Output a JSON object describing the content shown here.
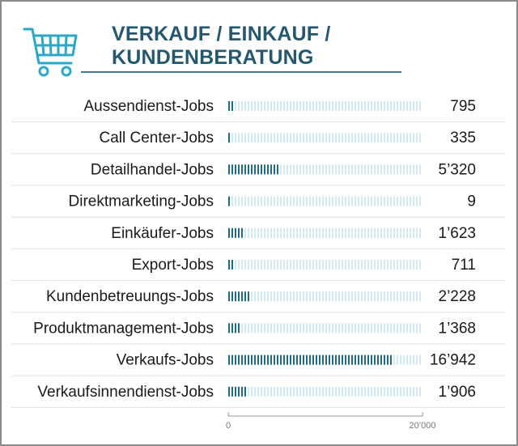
{
  "header": {
    "title_line1": "VERKAUF / EINKAUF /",
    "title_line2": "KUNDENBERATUNG",
    "icon": "shopping-cart-icon"
  },
  "colors": {
    "title": "#24586e",
    "bar_fill": "#1f6b82",
    "bar_track": "#d3e9f0",
    "row_divider": "#e2e2e2",
    "axis": "#9a9a9a"
  },
  "chart_data": {
    "type": "bar",
    "orientation": "horizontal",
    "categories": [
      "Aussendienst-Jobs",
      "Call Center-Jobs",
      "Detailhandel-Jobs",
      "Direktmarketing-Jobs",
      "Einkäufer-Jobs",
      "Export-Jobs",
      "Kundenbetreuungs-Jobs",
      "Produktmanagement-Jobs",
      "Verkaufs-Jobs",
      "Verkaufsinnendienst-Jobs"
    ],
    "values": [
      795,
      335,
      5320,
      9,
      1623,
      711,
      2228,
      1368,
      16942,
      1906
    ],
    "value_labels": [
      "795",
      "335",
      "5’320",
      "9",
      "1’623",
      "711",
      "2’228",
      "1’368",
      "16’942",
      "1’906"
    ],
    "xlim": [
      0,
      20000
    ],
    "x_ticks": [
      0,
      20000
    ],
    "x_tick_labels": [
      "0",
      "20’000"
    ],
    "grid": false,
    "legend": "none"
  }
}
